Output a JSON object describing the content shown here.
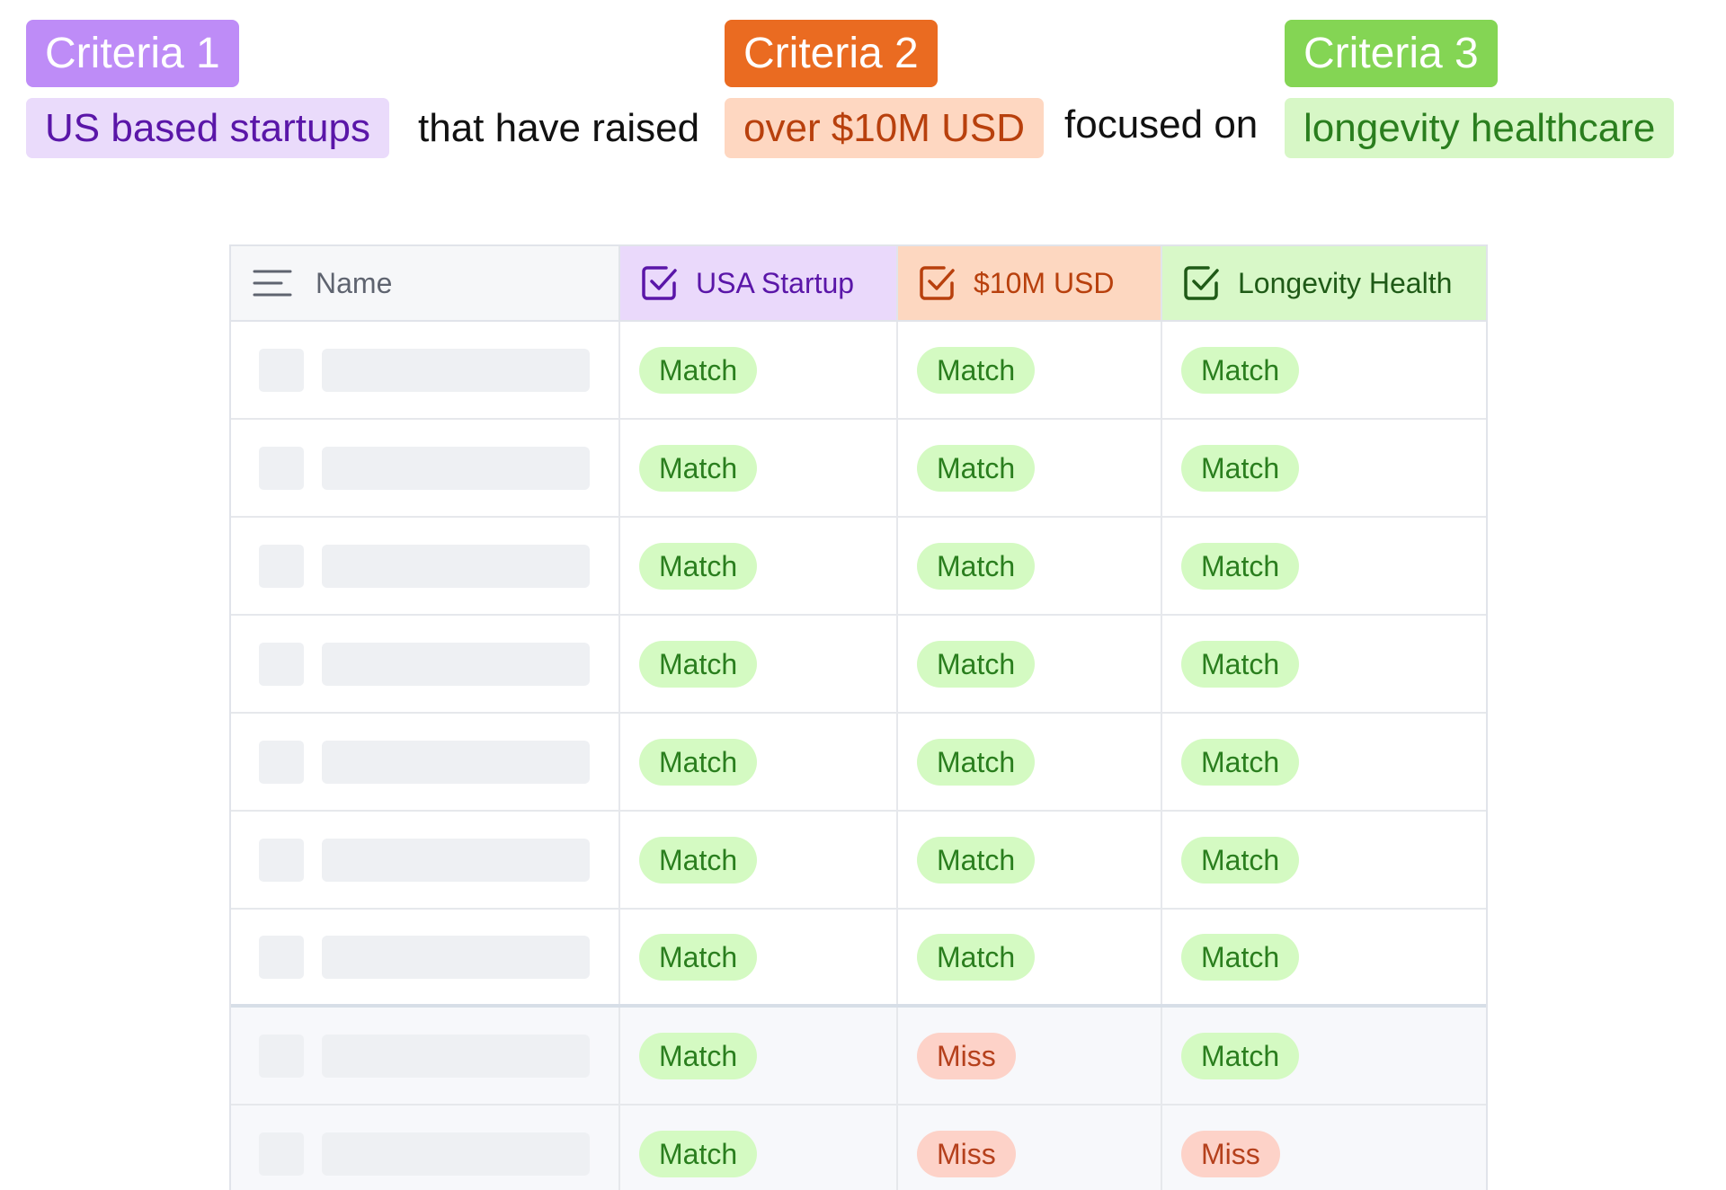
{
  "criteria": [
    {
      "tag": "Criteria 1",
      "value": "US based startups",
      "tag_color": "#be8cf7",
      "value_bg": "#eadbfb",
      "value_text": "#5a16a8"
    },
    {
      "tag": "Criteria 2",
      "value": "over $10M USD",
      "tag_color": "#ea6b21",
      "value_bg": "#fed7c1",
      "value_text": "#b8400d"
    },
    {
      "tag": "Criteria 3",
      "value": "longevity healthcare",
      "tag_color": "#84d554",
      "value_bg": "#d7f7c6",
      "value_text": "#2a7e1e"
    }
  ],
  "connectors": [
    "that have raised",
    "focused on"
  ],
  "table": {
    "columns": [
      {
        "label": "Name",
        "icon": "list-icon"
      },
      {
        "label": "USA Startup",
        "icon": "checkbox-icon"
      },
      {
        "label": "$10M USD",
        "icon": "checkbox-icon"
      },
      {
        "label": "Longevity Health",
        "icon": "checkbox-icon"
      }
    ],
    "rows": [
      {
        "results": [
          "Match",
          "Match",
          "Match"
        ]
      },
      {
        "results": [
          "Match",
          "Match",
          "Match"
        ]
      },
      {
        "results": [
          "Match",
          "Match",
          "Match"
        ]
      },
      {
        "results": [
          "Match",
          "Match",
          "Match"
        ]
      },
      {
        "results": [
          "Match",
          "Match",
          "Match"
        ]
      },
      {
        "results": [
          "Match",
          "Match",
          "Match"
        ]
      },
      {
        "results": [
          "Match",
          "Match",
          "Match"
        ]
      },
      {
        "results": [
          "Match",
          "Miss",
          "Match"
        ]
      },
      {
        "results": [
          "Match",
          "Miss",
          "Miss"
        ]
      }
    ]
  },
  "colors": {
    "match_bg": "#d4fac2",
    "match_text": "#2a7e1e",
    "miss_bg": "#fdd2c8",
    "miss_text": "#b5401c"
  }
}
